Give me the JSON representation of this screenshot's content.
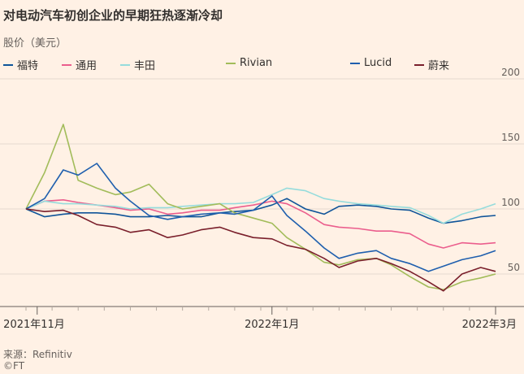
{
  "title": "对电动汽车初创企业的早期狂热逐渐冷却",
  "subtitle": "股价（美元）",
  "source": "来源：Refinitiv",
  "copyright": "©FT",
  "chart_data": {
    "type": "line",
    "title": "对电动汽车初创企业的早期狂热逐渐冷却",
    "ylabel": "股价（美元）",
    "ylim": [
      25,
      200
    ],
    "yticks": [
      50,
      100,
      150,
      200
    ],
    "grid": true,
    "legend_position": "top",
    "x_tick_labels": [
      "2021年11月",
      "2022年1月",
      "2022年3月"
    ],
    "x_range": [
      "2021-10-29",
      "2022-03-04"
    ],
    "x": [
      "2021-10-29",
      "2021-11-03",
      "2021-11-08",
      "2021-11-12",
      "2021-11-17",
      "2021-11-22",
      "2021-11-26",
      "2021-12-01",
      "2021-12-06",
      "2021-12-10",
      "2021-12-15",
      "2021-12-20",
      "2021-12-24",
      "2021-12-29",
      "2022-01-03",
      "2022-01-07",
      "2022-01-12",
      "2022-01-17",
      "2022-01-21",
      "2022-01-26",
      "2022-01-31",
      "2022-02-04",
      "2022-02-09",
      "2022-02-14",
      "2022-02-18",
      "2022-02-23",
      "2022-02-28",
      "2022-03-04"
    ],
    "series": [
      {
        "name": "福特",
        "color": "#0f5499",
        "values": [
          100,
          94,
          96,
          97,
          97,
          96,
          94,
          94,
          95,
          94,
          94,
          97,
          98,
          99,
          103,
          108,
          100,
          96,
          102,
          103,
          102,
          100,
          99,
          93,
          89,
          91,
          94,
          95
        ]
      },
      {
        "name": "通用",
        "color": "#eb5e8d",
        "values": [
          100,
          106,
          107,
          105,
          103,
          101,
          99,
          100,
          96,
          97,
          99,
          99,
          101,
          103,
          106,
          104,
          97,
          88,
          86,
          85,
          83,
          83,
          81,
          73,
          70,
          74,
          73,
          74
        ]
      },
      {
        "name": "丰田",
        "color": "#96dcdc",
        "values": [
          100,
          106,
          104,
          104,
          103,
          102,
          100,
          101,
          101,
          102,
          103,
          104,
          104,
          105,
          111,
          116,
          114,
          108,
          106,
          104,
          103,
          102,
          101,
          95,
          89,
          96,
          100,
          104
        ]
      },
      {
        "name": "Rivian",
        "color": "#a2bc5a",
        "values": [
          100,
          128,
          165,
          122,
          116,
          111,
          113,
          119,
          104,
          100,
          102,
          104,
          97,
          93,
          89,
          78,
          69,
          59,
          57,
          61,
          62,
          57,
          48,
          40,
          38,
          44,
          47,
          50
        ]
      },
      {
        "name": "Lucid",
        "color": "#1f5fae",
        "values": [
          100,
          108,
          130,
          126,
          135,
          116,
          106,
          95,
          92,
          94,
          96,
          97,
          96,
          99,
          110,
          95,
          83,
          70,
          62,
          66,
          68,
          62,
          58,
          52,
          56,
          61,
          64,
          68
        ]
      },
      {
        "name": "蔚来",
        "color": "#7a1f2b",
        "values": [
          100,
          98,
          99,
          95,
          88,
          86,
          82,
          84,
          78,
          80,
          84,
          86,
          82,
          78,
          77,
          72,
          69,
          62,
          55,
          60,
          62,
          58,
          52,
          44,
          37,
          50,
          55,
          52
        ]
      }
    ]
  }
}
